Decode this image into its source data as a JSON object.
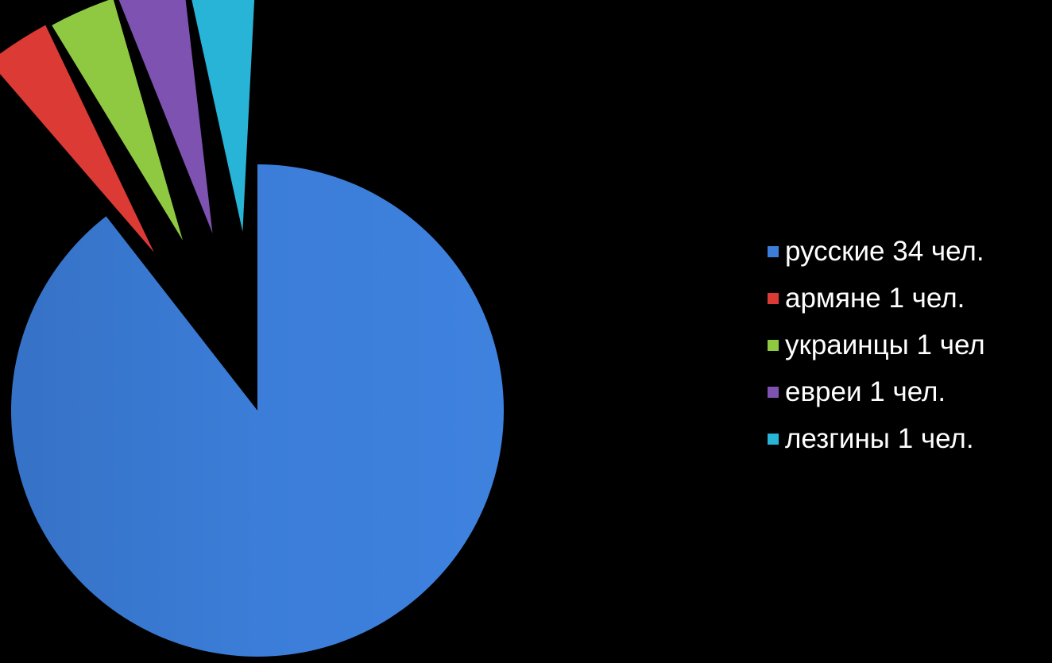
{
  "chart_data": {
    "type": "pie",
    "title": "",
    "categories": [
      "русские",
      "армяне",
      "украинцы",
      "евреи",
      "лезгины"
    ],
    "values": [
      34,
      1,
      1,
      1,
      1
    ],
    "exploded": [
      false,
      true,
      true,
      true,
      true
    ],
    "legend_position": "right",
    "legend": [
      {
        "label": "русские 34 чел.",
        "color": "#3b7dd8"
      },
      {
        "label": "армяне 1 чел.",
        "color": "#dc3a35"
      },
      {
        "label": "украинцы 1 чел",
        "color": "#8fc941"
      },
      {
        "label": "евреи 1 чел.",
        "color": "#7e52b0"
      },
      {
        "label": "лезгины 1 чел.",
        "color": "#28b4d6"
      }
    ],
    "colors": [
      "#3b7dd8",
      "#dc3a35",
      "#8fc941",
      "#7e52b0",
      "#28b4d6"
    ]
  }
}
